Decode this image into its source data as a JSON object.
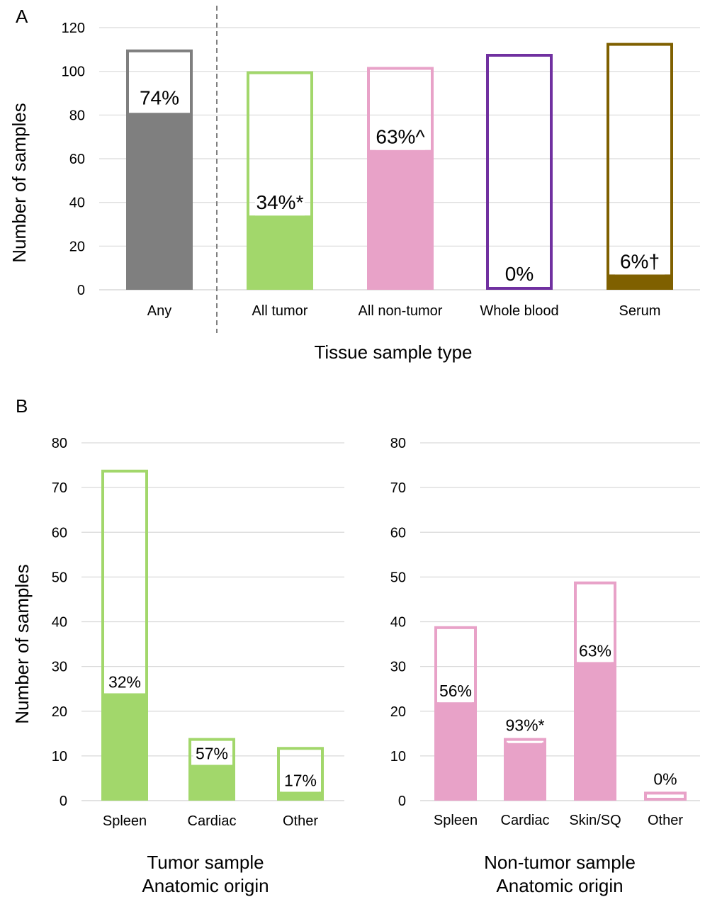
{
  "chart_data": [
    {
      "panel": "A",
      "type": "bar",
      "ylabel": "Number of samples",
      "xlabel": "Tissue sample type",
      "ylim": [
        0,
        120
      ],
      "yticks": [
        "0",
        "20",
        "40",
        "60",
        "80",
        "100",
        "120"
      ],
      "grid": true,
      "separator_after_category": "Any",
      "categories": [
        "Any",
        "All tumor",
        "All non-tumor",
        "Whole blood",
        "Serum"
      ],
      "totals": [
        110,
        100,
        102,
        108,
        113
      ],
      "positives": [
        81,
        34,
        64,
        0,
        7
      ],
      "labels": [
        "74%",
        "34%*",
        "63%^",
        "0%",
        "6%†"
      ],
      "colors": [
        "#7f7f7f",
        "#a2d76b",
        "#e8a2c8",
        "#7030a0",
        "#7f6000"
      ]
    },
    {
      "panel": "B",
      "type": "bar",
      "ylabel": "Number of samples",
      "xlabel": [
        "Tumor sample",
        "Anatomic origin"
      ],
      "ylim": [
        0,
        80
      ],
      "yticks": [
        "0",
        "10",
        "20",
        "30",
        "40",
        "50",
        "60",
        "70",
        "80"
      ],
      "grid": true,
      "categories": [
        "Spleen",
        "Cardiac",
        "Other"
      ],
      "totals": [
        74,
        14,
        12
      ],
      "positives": [
        24,
        8,
        2
      ],
      "labels": [
        "32%",
        "57%",
        "17%"
      ],
      "color": "#a2d76b"
    },
    {
      "panel": "",
      "type": "bar",
      "xlabel": [
        "Non-tumor sample",
        "Anatomic origin"
      ],
      "ylim": [
        0,
        80
      ],
      "yticks": [
        "0",
        "10",
        "20",
        "30",
        "40",
        "50",
        "60",
        "70",
        "80"
      ],
      "grid": true,
      "categories": [
        "Spleen",
        "Cardiac",
        "Skin/SQ",
        "Other"
      ],
      "totals": [
        39,
        14,
        49,
        2
      ],
      "positives": [
        22,
        13,
        31,
        0
      ],
      "labels": [
        "56%",
        "93%*",
        "63%",
        "0%"
      ],
      "color": "#e8a2c8"
    }
  ]
}
